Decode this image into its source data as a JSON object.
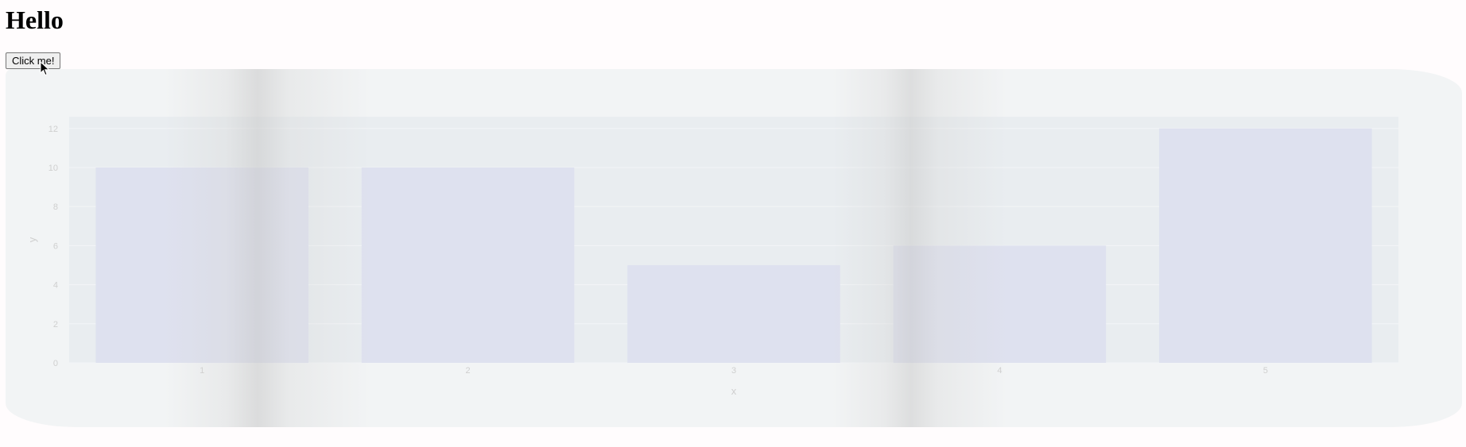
{
  "page": {
    "heading": "Hello",
    "button_label": "Click me!"
  },
  "colors": {
    "card_bg": "#f2f4f5",
    "plot_bg": "#e9edf0",
    "bar_fill": "#dee1ef",
    "tick_text": "#cfcfcf"
  },
  "chart_data": {
    "type": "bar",
    "categories": [
      "1",
      "2",
      "3",
      "4",
      "5"
    ],
    "values": [
      10,
      10,
      5,
      6,
      12
    ],
    "xlabel": "x",
    "ylabel": "y",
    "ylim": [
      0,
      12.6
    ],
    "yticks": [
      0,
      2,
      4,
      6,
      8,
      10,
      12
    ],
    "grid": true
  }
}
